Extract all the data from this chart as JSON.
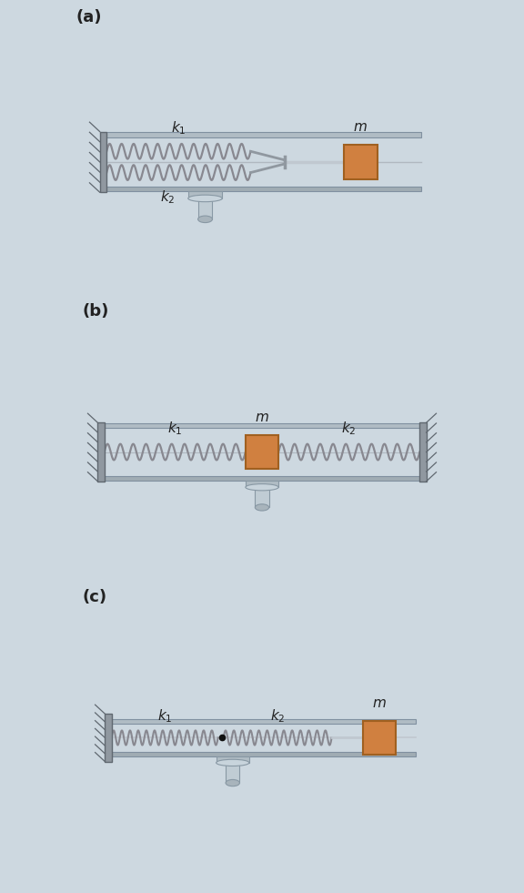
{
  "bg_color": "#cdd8e0",
  "mass_color": "#d08040",
  "mass_edge_color": "#a06020",
  "rail_color_top": "#b8c4cc",
  "rail_color_bot": "#a0acb4",
  "spring_color": "#909898",
  "wall_color": "#9098a0",
  "wall_hatch_color": "#707880",
  "pedestal_color": "#b0bcc4",
  "label_color": "#222222",
  "panel_labels": [
    "(a)",
    "(b)",
    "(c)"
  ],
  "figsize": [
    5.76,
    9.81
  ],
  "dpi": 100
}
